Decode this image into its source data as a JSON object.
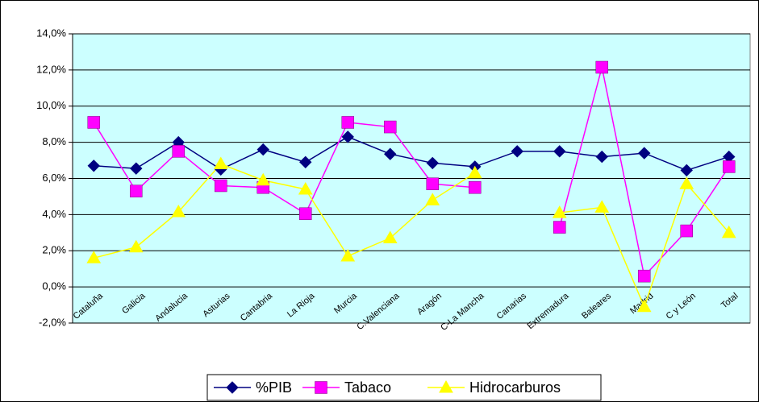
{
  "chart_data": {
    "type": "line",
    "categories": [
      "Cataluña",
      "Galicia",
      "Andalucia",
      "Asturias",
      "Cantabria",
      "La Rioja",
      "Murcia",
      "C.Valenciana",
      "Aragón",
      "C-La Mancha",
      "Canarias",
      "Extremadura",
      "Baleares",
      "Madrid",
      "C y León",
      "Total"
    ],
    "series": [
      {
        "name": "%PIB",
        "color": "#000080",
        "marker": "diamond",
        "values": [
          6.7,
          6.55,
          8.0,
          6.5,
          7.6,
          6.9,
          8.3,
          7.35,
          6.85,
          6.65,
          7.5,
          7.5,
          7.2,
          7.4,
          6.45,
          7.2
        ]
      },
      {
        "name": "Tabaco",
        "color": "#ff00ff",
        "marker": "square",
        "values": [
          9.1,
          5.3,
          7.5,
          5.6,
          5.5,
          4.05,
          9.1,
          8.85,
          5.7,
          5.5,
          null,
          3.3,
          12.15,
          0.6,
          3.1,
          6.65
        ]
      },
      {
        "name": "Hidrocarburos",
        "color": "#ffff00",
        "marker": "triangle",
        "values": [
          1.6,
          2.2,
          4.15,
          6.8,
          5.9,
          5.4,
          1.7,
          2.7,
          4.8,
          6.3,
          null,
          4.1,
          4.4,
          -1.1,
          5.7,
          3.0
        ]
      }
    ],
    "ylim": [
      -2,
      14
    ],
    "yticks": [
      {
        "value": -2,
        "label": "-2,0%"
      },
      {
        "value": 0,
        "label": "0,0%"
      },
      {
        "value": 2,
        "label": "2,0%"
      },
      {
        "value": 4,
        "label": "4,0%"
      },
      {
        "value": 6,
        "label": "6,0%"
      },
      {
        "value": 8,
        "label": "8,0%"
      },
      {
        "value": 10,
        "label": "10,0%"
      },
      {
        "value": 12,
        "label": "12,0%"
      },
      {
        "value": 14,
        "label": "14,0%"
      }
    ],
    "grid": true,
    "plot_background": "#ccffff",
    "legend": "bottom"
  }
}
